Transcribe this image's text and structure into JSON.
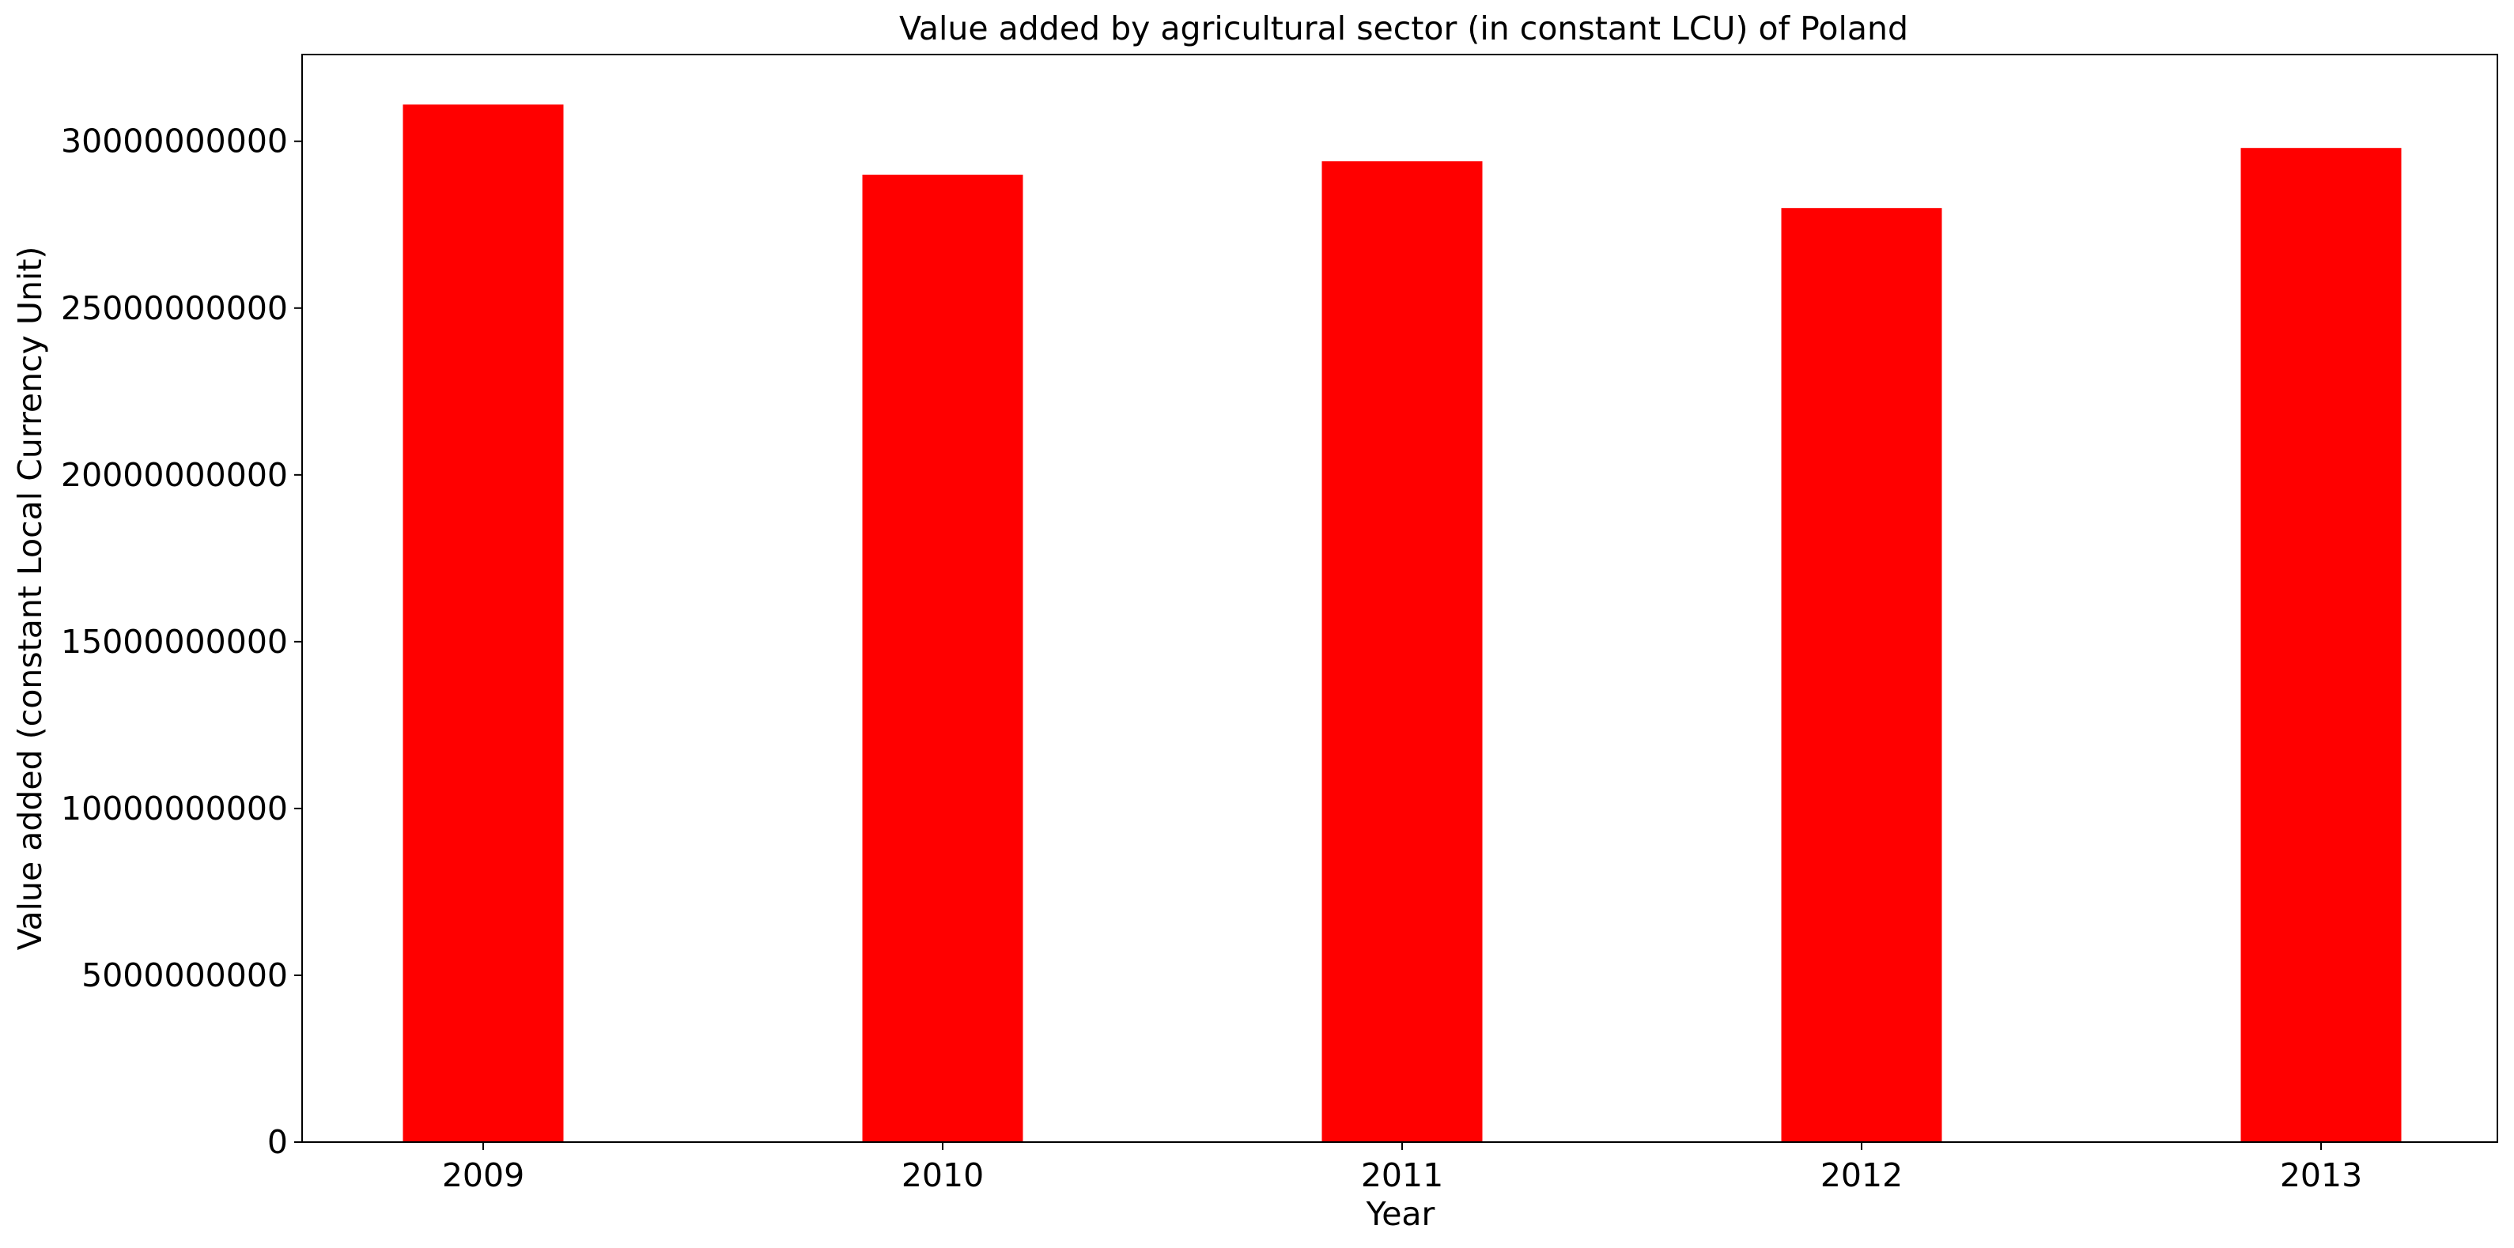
{
  "chart_data": {
    "type": "bar",
    "title": "Value added by agricultural sector (in constant LCU) of Poland",
    "xlabel": "Year",
    "ylabel": "Value added (constant Local Currency Unit)",
    "categories": [
      "2009",
      "2010",
      "2011",
      "2012",
      "2013"
    ],
    "values": [
      31100000000,
      29000000000,
      29400000000,
      28000000000,
      29800000000
    ],
    "ylim": [
      0,
      32600000000
    ],
    "yticks": [
      0,
      5000000000,
      10000000000,
      15000000000,
      20000000000,
      25000000000,
      30000000000
    ],
    "ytick_labels": [
      "0",
      "5000000000",
      "10000000000",
      "15000000000",
      "20000000000",
      "25000000000",
      "30000000000"
    ],
    "bar_color": "#ff0000",
    "grid": false,
    "legend": "none"
  }
}
